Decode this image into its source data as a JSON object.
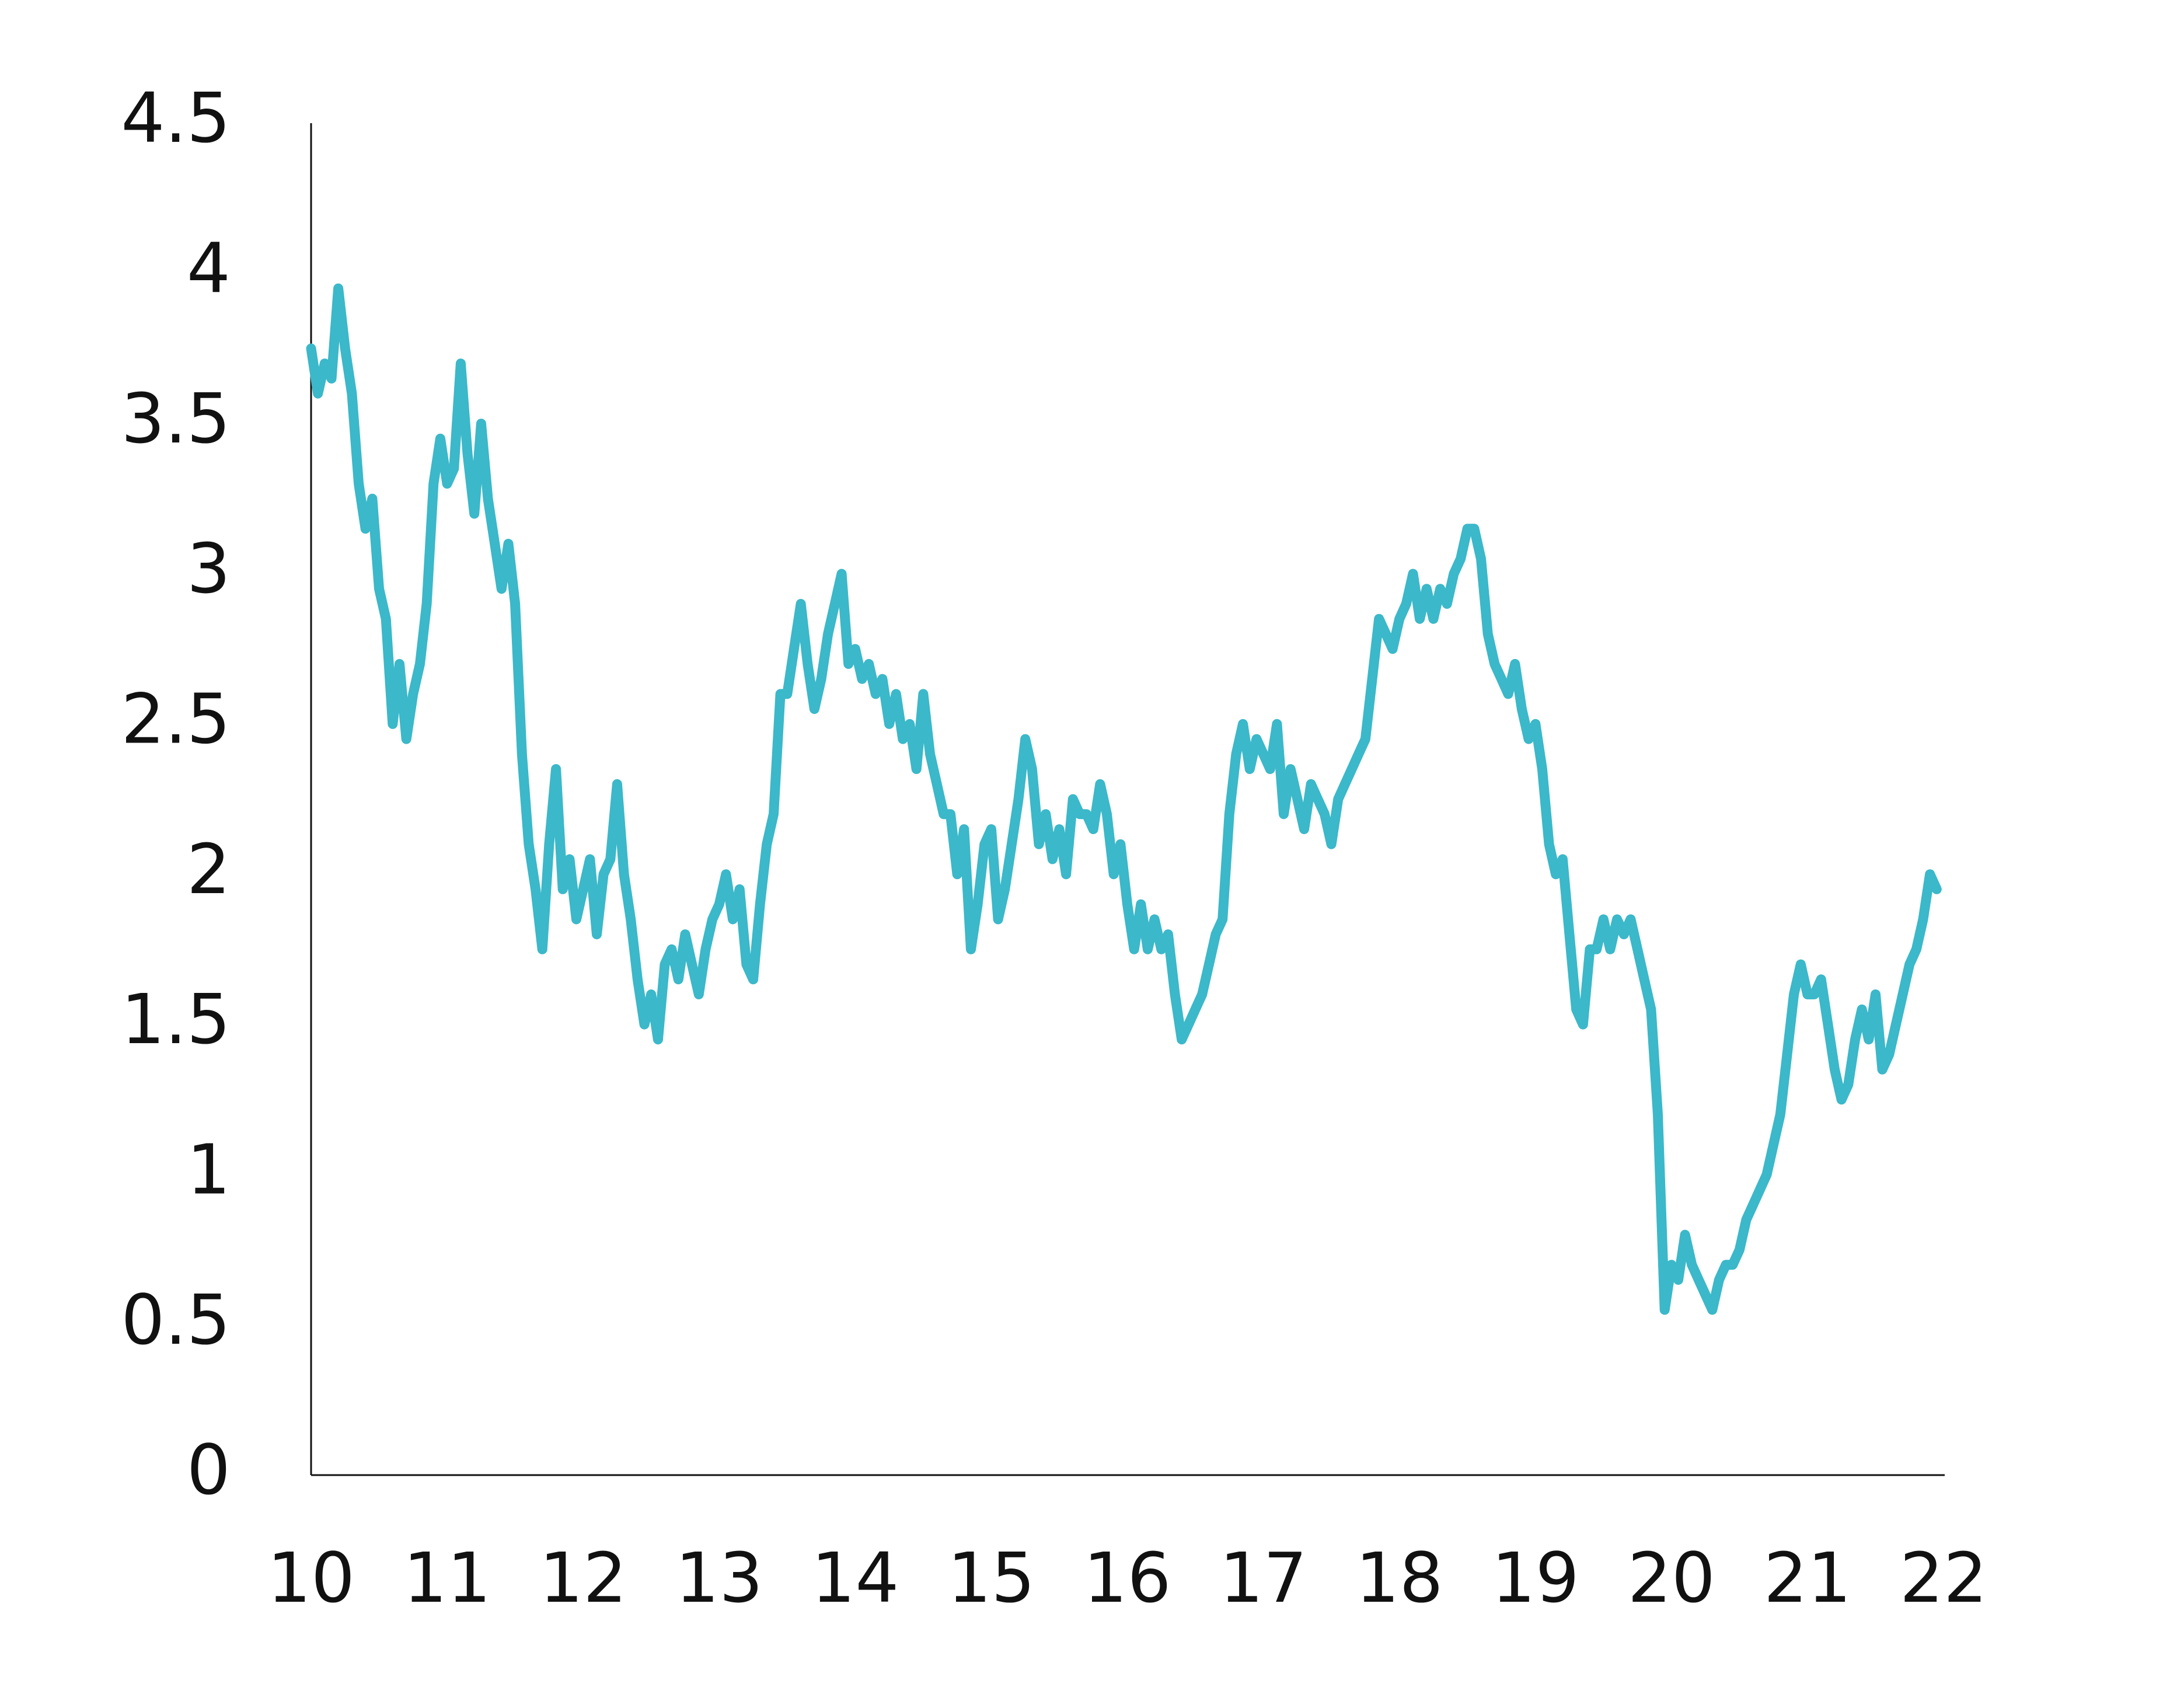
{
  "chart_data": {
    "type": "line",
    "x": [
      10.0,
      10.05,
      10.1,
      10.15,
      10.2,
      10.25,
      10.3,
      10.35,
      10.4,
      10.45,
      10.5,
      10.55,
      10.6,
      10.65,
      10.7,
      10.75,
      10.8,
      10.85,
      10.9,
      10.95,
      11.0,
      11.05,
      11.1,
      11.15,
      11.2,
      11.25,
      11.3,
      11.35,
      11.4,
      11.45,
      11.5,
      11.55,
      11.6,
      11.65,
      11.7,
      11.75,
      11.8,
      11.85,
      11.9,
      11.95,
      12.0,
      12.05,
      12.1,
      12.15,
      12.2,
      12.25,
      12.3,
      12.35,
      12.4,
      12.45,
      12.5,
      12.55,
      12.6,
      12.65,
      12.7,
      12.75,
      12.8,
      12.85,
      12.9,
      12.95,
      13.0,
      13.05,
      13.1,
      13.15,
      13.2,
      13.25,
      13.3,
      13.35,
      13.4,
      13.45,
      13.5,
      13.55,
      13.6,
      13.65,
      13.7,
      13.75,
      13.8,
      13.85,
      13.9,
      13.95,
      14.0,
      14.05,
      14.1,
      14.15,
      14.2,
      14.25,
      14.3,
      14.35,
      14.4,
      14.45,
      14.5,
      14.55,
      14.6,
      14.65,
      14.7,
      14.75,
      14.8,
      14.85,
      14.9,
      14.95,
      15.0,
      15.05,
      15.1,
      15.15,
      15.2,
      15.25,
      15.3,
      15.35,
      15.4,
      15.45,
      15.5,
      15.55,
      15.6,
      15.65,
      15.7,
      15.75,
      15.8,
      15.85,
      15.9,
      15.95,
      16.0,
      16.05,
      16.1,
      16.15,
      16.2,
      16.25,
      16.3,
      16.35,
      16.4,
      16.45,
      16.5,
      16.55,
      16.6,
      16.65,
      16.7,
      16.75,
      16.8,
      16.85,
      16.9,
      16.95,
      17.0,
      17.05,
      17.1,
      17.15,
      17.2,
      17.25,
      17.3,
      17.35,
      17.4,
      17.45,
      17.5,
      17.55,
      17.6,
      17.65,
      17.7,
      17.75,
      17.8,
      17.85,
      17.9,
      17.95,
      18.0,
      18.05,
      18.1,
      18.15,
      18.2,
      18.25,
      18.3,
      18.35,
      18.4,
      18.45,
      18.5,
      18.55,
      18.6,
      18.65,
      18.7,
      18.75,
      18.8,
      18.85,
      18.9,
      18.95,
      19.0,
      19.05,
      19.1,
      19.15,
      19.2,
      19.25,
      19.3,
      19.35,
      19.4,
      19.45,
      19.5,
      19.55,
      19.6,
      19.65,
      19.7,
      19.75,
      19.8,
      19.85,
      19.9,
      19.95,
      20.0,
      20.05,
      20.1,
      20.15,
      20.2,
      20.25,
      20.3,
      20.35,
      20.4,
      20.45,
      20.5,
      20.55,
      20.6,
      20.65,
      20.7,
      20.75,
      20.8,
      20.85,
      20.9,
      20.95,
      21.0,
      21.05,
      21.1,
      21.15,
      21.2,
      21.25,
      21.3,
      21.35,
      21.4,
      21.45,
      21.5,
      21.55,
      21.6,
      21.65,
      21.7,
      21.75,
      21.8,
      21.85,
      21.9,
      21.95
    ],
    "series": [
      {
        "color": "#3bb8c9",
        "values": [
          3.75,
          3.6,
          3.7,
          3.65,
          3.95,
          3.75,
          3.6,
          3.3,
          3.15,
          3.25,
          2.95,
          2.85,
          2.5,
          2.7,
          2.45,
          2.6,
          2.7,
          2.9,
          3.3,
          3.45,
          3.3,
          3.35,
          3.7,
          3.4,
          3.2,
          3.5,
          3.25,
          3.1,
          2.95,
          3.1,
          2.9,
          2.4,
          2.1,
          1.95,
          1.75,
          2.1,
          2.35,
          1.95,
          2.05,
          1.85,
          1.95,
          2.05,
          1.8,
          2.0,
          2.05,
          2.3,
          2.0,
          1.85,
          1.65,
          1.5,
          1.6,
          1.45,
          1.7,
          1.75,
          1.65,
          1.8,
          1.7,
          1.6,
          1.75,
          1.85,
          1.9,
          2.0,
          1.85,
          1.95,
          1.7,
          1.65,
          1.9,
          2.1,
          2.2,
          2.6,
          2.6,
          2.75,
          2.9,
          2.7,
          2.55,
          2.65,
          2.8,
          2.9,
          3.0,
          2.7,
          2.75,
          2.65,
          2.7,
          2.6,
          2.65,
          2.5,
          2.6,
          2.45,
          2.5,
          2.35,
          2.6,
          2.4,
          2.3,
          2.2,
          2.2,
          2.0,
          2.15,
          1.75,
          1.9,
          2.1,
          2.15,
          1.85,
          1.95,
          2.1,
          2.25,
          2.45,
          2.35,
          2.1,
          2.2,
          2.05,
          2.15,
          2.0,
          2.25,
          2.2,
          2.2,
          2.15,
          2.3,
          2.2,
          2.0,
          2.1,
          1.9,
          1.75,
          1.9,
          1.75,
          1.85,
          1.75,
          1.8,
          1.6,
          1.45,
          1.5,
          1.55,
          1.6,
          1.7,
          1.8,
          1.85,
          2.2,
          2.4,
          2.5,
          2.35,
          2.45,
          2.4,
          2.35,
          2.5,
          2.2,
          2.35,
          2.25,
          2.15,
          2.3,
          2.25,
          2.2,
          2.1,
          2.25,
          2.3,
          2.35,
          2.4,
          2.45,
          2.65,
          2.85,
          2.8,
          2.75,
          2.85,
          2.9,
          3.0,
          2.85,
          2.95,
          2.85,
          2.95,
          2.9,
          3.0,
          3.05,
          3.15,
          3.15,
          3.05,
          2.8,
          2.7,
          2.65,
          2.6,
          2.7,
          2.55,
          2.45,
          2.5,
          2.35,
          2.1,
          2.0,
          2.05,
          1.8,
          1.55,
          1.5,
          1.75,
          1.75,
          1.85,
          1.75,
          1.85,
          1.8,
          1.85,
          1.75,
          1.65,
          1.55,
          1.2,
          0.55,
          0.7,
          0.65,
          0.8,
          0.7,
          0.65,
          0.6,
          0.55,
          0.65,
          0.7,
          0.7,
          0.75,
          0.85,
          0.9,
          0.95,
          1.0,
          1.1,
          1.2,
          1.4,
          1.6,
          1.7,
          1.6,
          1.6,
          1.65,
          1.5,
          1.35,
          1.25,
          1.3,
          1.45,
          1.55,
          1.45,
          1.6,
          1.35,
          1.4,
          1.5,
          1.6,
          1.7,
          1.75,
          1.85,
          2.0,
          1.95
        ]
      }
    ],
    "xlim": [
      10,
      22
    ],
    "xticks": [
      10,
      11,
      12,
      13,
      14,
      15,
      16,
      17,
      18,
      19,
      20,
      21,
      22
    ],
    "ylim": [
      0,
      4.5
    ],
    "yticks": [
      0,
      0.5,
      1,
      1.5,
      2,
      2.5,
      3,
      3.5,
      4,
      4.5
    ],
    "grid": false
  }
}
